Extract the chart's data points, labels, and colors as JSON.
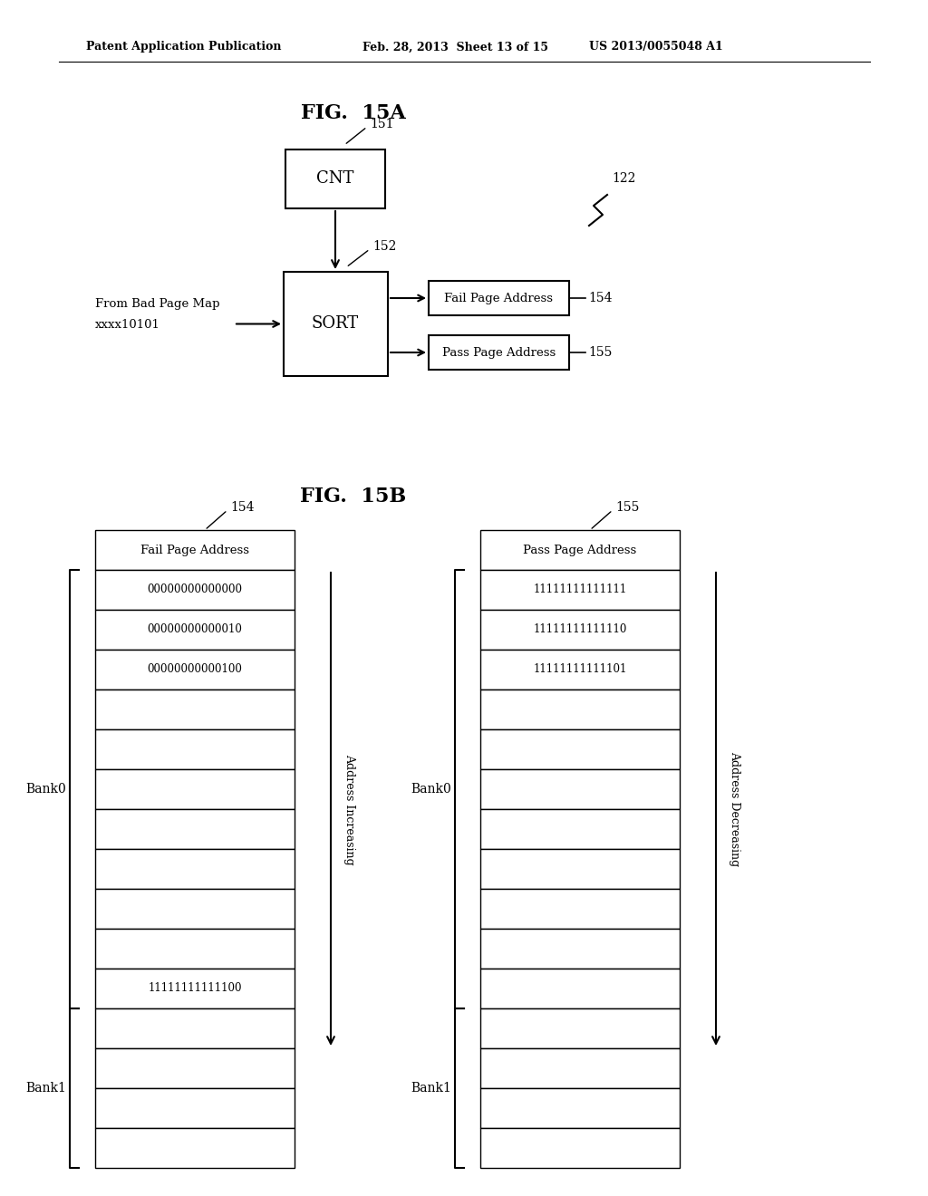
{
  "bg_color": "#ffffff",
  "header_text_left": "Patent Application Publication",
  "header_text_mid": "Feb. 28, 2013  Sheet 13 of 15",
  "header_text_right": "US 2013/0055048 A1",
  "fig15a_title": "FIG.  15A",
  "fig15b_title": "FIG.  15B",
  "cnt_label": "CNT",
  "cnt_ref": "151",
  "sort_label": "SORT",
  "sort_ref": "152",
  "fail_label": "Fail Page Address",
  "fail_ref": "154",
  "pass_label": "Pass Page Address",
  "pass_ref": "155",
  "ref_122": "122",
  "from_bad_page_map": "From Bad Page Map",
  "xxxx_label": "xxxx10101",
  "fail_rows": [
    "Fail Page Address",
    "00000000000000",
    "00000000000010",
    "00000000000100",
    "",
    "",
    "",
    "",
    "",
    "",
    "",
    "11111111111100",
    "",
    "",
    "",
    ""
  ],
  "pass_rows": [
    "Pass Page Address",
    "11111111111111",
    "11111111111110",
    "11111111111101",
    "",
    "",
    "",
    "",
    "",
    "",
    "",
    "",
    "",
    "",
    "",
    ""
  ],
  "bank0_label": "Bank0",
  "bank1_label": "Bank1",
  "addr_increasing": "Address Increasing",
  "addr_decreasing": "Address Decreasing"
}
